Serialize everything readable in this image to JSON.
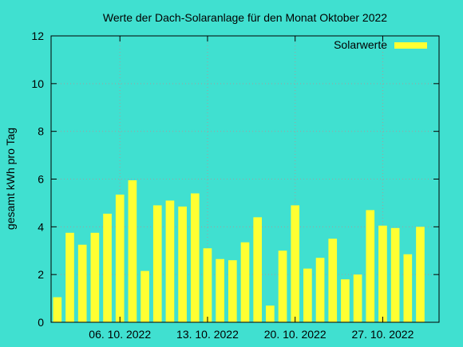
{
  "chart_data": {
    "type": "bar",
    "title": "Werte der Dach-Solaranlage für den Monat Oktober 2022",
    "xlabel": "",
    "ylabel": "gesamt kWh pro Tag",
    "ylim": [
      0,
      12
    ],
    "yticks": [
      0,
      2,
      4,
      6,
      8,
      10,
      12
    ],
    "xlim_days": [
      0.5,
      31.5
    ],
    "xticks": [
      {
        "day": 6,
        "label": "06. 10. 2022"
      },
      {
        "day": 13,
        "label": "13. 10. 2022"
      },
      {
        "day": 20,
        "label": "20. 10. 2022"
      },
      {
        "day": 27,
        "label": "27. 10. 2022"
      }
    ],
    "grid": true,
    "legend_position": "top-right",
    "colors": {
      "background": "#40e0d0",
      "bar": "#ffff33",
      "grid": "#a0a0a0",
      "axis": "#000000"
    },
    "series": [
      {
        "name": "Solarwerte",
        "x": [
          1,
          2,
          3,
          4,
          5,
          6,
          7,
          8,
          9,
          10,
          11,
          12,
          13,
          14,
          15,
          16,
          17,
          18,
          19,
          20,
          21,
          22,
          23,
          24,
          25,
          26,
          27,
          28,
          29,
          30,
          31
        ],
        "values": [
          1.05,
          3.75,
          3.25,
          3.75,
          4.55,
          5.35,
          5.95,
          2.15,
          4.9,
          5.1,
          4.85,
          5.4,
          3.1,
          2.65,
          2.6,
          3.35,
          4.4,
          0.7,
          3.0,
          4.9,
          2.25,
          2.7,
          3.5,
          1.8,
          2.0,
          4.7,
          4.05,
          3.95,
          2.85,
          4.0,
          0
        ]
      }
    ]
  }
}
